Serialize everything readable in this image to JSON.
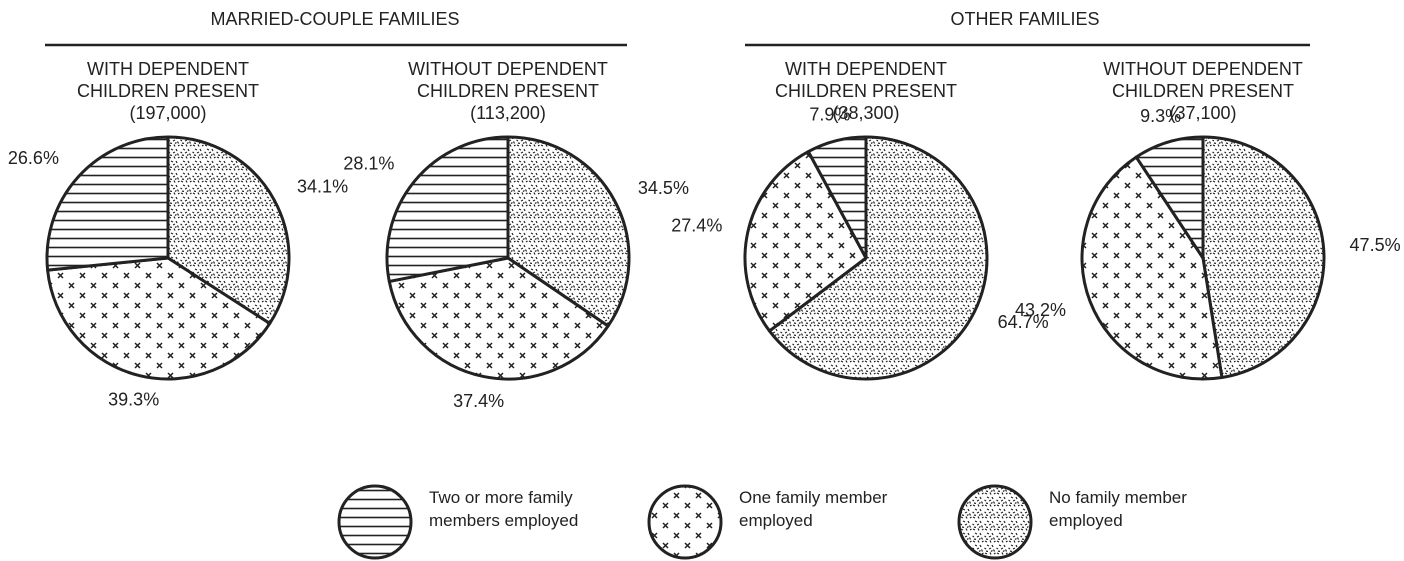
{
  "groups": [
    "MARRIED-COUPLE FAMILIES",
    "OTHER FAMILIES"
  ],
  "chart_data": [
    {
      "type": "pie",
      "title": "WITH DEPENDENT CHILDREN PRESENT",
      "subtitle": "(197,000)",
      "categories": [
        "No family member employed",
        "One family member employed",
        "Two or more family members employed"
      ],
      "values": [
        34.1,
        39.3,
        26.6
      ],
      "value_labels": [
        "34.1%",
        "39.3%",
        "26.6%"
      ],
      "patterns": [
        "stipple",
        "cross",
        "hlines"
      ]
    },
    {
      "type": "pie",
      "title": "WITHOUT DEPENDENT CHILDREN PRESENT",
      "subtitle": "(113,200)",
      "categories": [
        "No family member employed",
        "One family member employed",
        "Two or more family members employed"
      ],
      "values": [
        34.5,
        37.4,
        28.1
      ],
      "value_labels": [
        "34.5%",
        "37.4%",
        "28.1%"
      ],
      "patterns": [
        "stipple",
        "cross",
        "hlines"
      ]
    },
    {
      "type": "pie",
      "title": "WITH DEPENDENT CHILDREN PRESENT",
      "subtitle": "(38,300)",
      "categories": [
        "No family member employed",
        "One family member employed",
        "Two or more family members employed"
      ],
      "values": [
        64.7,
        27.4,
        7.9
      ],
      "value_labels": [
        "64.7%",
        "27.4%",
        "7.9%"
      ],
      "patterns": [
        "stipple",
        "cross",
        "hlines"
      ]
    },
    {
      "type": "pie",
      "title": "WITHOUT DEPENDENT CHILDREN PRESENT",
      "subtitle": "(37,100)",
      "categories": [
        "No family member employed",
        "One family member employed",
        "Two or more family members employed"
      ],
      "values": [
        47.5,
        43.2,
        9.3
      ],
      "value_labels": [
        "47.5%",
        "43.2%",
        "9.3%"
      ],
      "patterns": [
        "stipple",
        "cross",
        "hlines"
      ]
    }
  ]
}
